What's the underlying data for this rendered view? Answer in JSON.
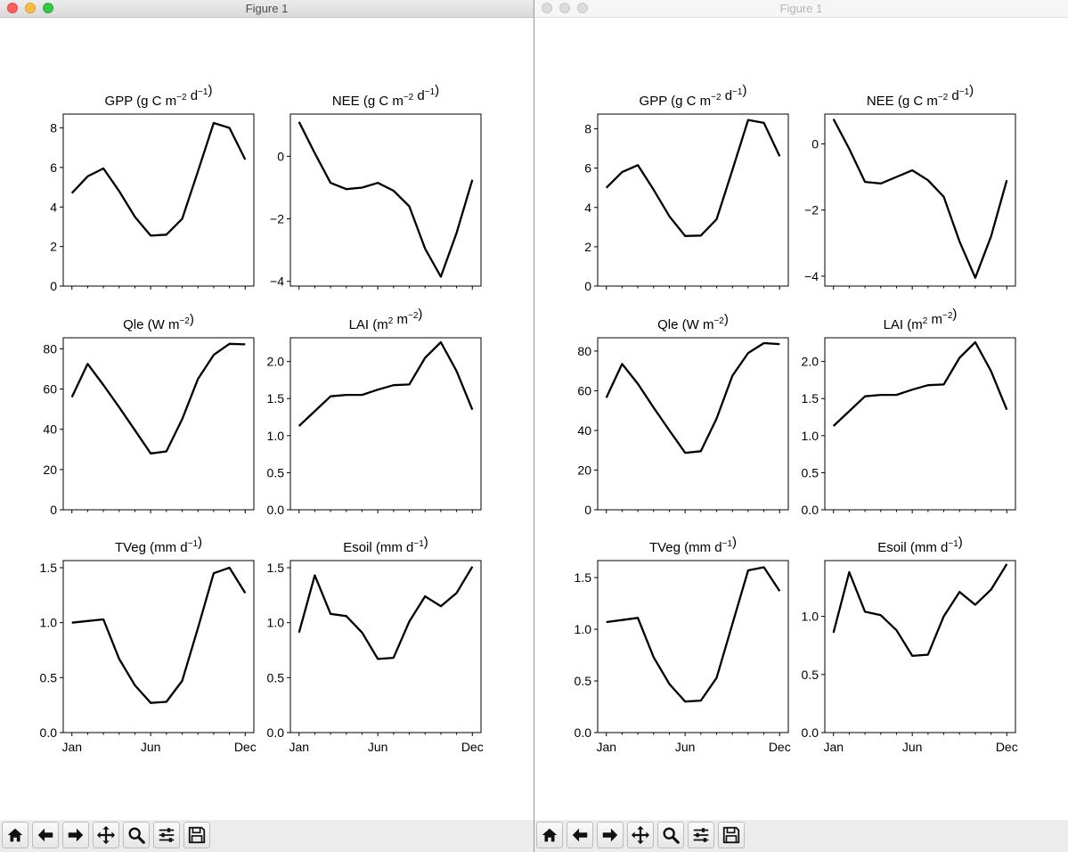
{
  "windows": [
    {
      "id": "win-left",
      "title": "Figure 1",
      "active": true
    },
    {
      "id": "win-right",
      "title": "Figure 1",
      "active": false
    }
  ],
  "toolbar": {
    "buttons": [
      {
        "name": "home-button",
        "icon": "home-icon"
      },
      {
        "name": "back-button",
        "icon": "arrow-left-icon"
      },
      {
        "name": "forward-button",
        "icon": "arrow-right-icon"
      },
      {
        "name": "pan-button",
        "icon": "move-icon"
      },
      {
        "name": "zoom-button",
        "icon": "zoom-icon"
      },
      {
        "name": "subplots-button",
        "icon": "sliders-icon"
      },
      {
        "name": "save-button",
        "icon": "save-icon"
      }
    ]
  },
  "colors": {
    "line": "#000000"
  },
  "chart_data": [
    {
      "figure": "left",
      "panels": [
        {
          "type": "line",
          "title": "GPP (g C m⁻² d⁻¹)",
          "ylim": [
            0,
            8.7
          ],
          "yticks": [
            0,
            2,
            4,
            6,
            8
          ],
          "yticklabels": [
            "0",
            "2",
            "4",
            "6",
            "8"
          ],
          "x": [
            1,
            2,
            3,
            4,
            5,
            6,
            7,
            8,
            9,
            10,
            11,
            12
          ],
          "values": [
            4.7,
            5.55,
            5.95,
            4.8,
            3.5,
            2.55,
            2.6,
            3.4,
            5.8,
            8.25,
            8.0,
            6.4
          ]
        },
        {
          "type": "line",
          "title": "NEE (g C m⁻² d⁻¹)",
          "ylim": [
            -4.15,
            1.35
          ],
          "yticks": [
            0,
            -2,
            -4
          ],
          "yticklabels": [
            "0",
            "−2",
            "−4"
          ],
          "x": [
            1,
            2,
            3,
            4,
            5,
            6,
            7,
            8,
            9,
            10,
            11,
            12
          ],
          "values": [
            1.1,
            0.1,
            -0.85,
            -1.05,
            -1.0,
            -0.85,
            -1.1,
            -1.6,
            -2.95,
            -3.85,
            -2.45,
            -0.75
          ]
        },
        {
          "type": "line",
          "title": "Qle (W m⁻²)",
          "ylim": [
            0,
            85.5
          ],
          "yticks": [
            0,
            20,
            40,
            60,
            80
          ],
          "yticklabels": [
            "0",
            "20",
            "40",
            "60",
            "80"
          ],
          "x": [
            1,
            2,
            3,
            4,
            5,
            6,
            7,
            8,
            9,
            10,
            11,
            12
          ],
          "values": [
            56,
            72.5,
            62,
            51,
            39.5,
            28,
            29,
            45,
            65,
            77,
            82.5,
            82.2
          ]
        },
        {
          "type": "line",
          "title": "LAI (m² m⁻²)",
          "ylim": [
            0,
            2.32
          ],
          "yticks": [
            0,
            0.5,
            1,
            1.5,
            2
          ],
          "yticklabels": [
            "0.0",
            "0.5",
            "1.0",
            "1.5",
            "2.0"
          ],
          "x": [
            1,
            2,
            3,
            4,
            5,
            6,
            7,
            8,
            9,
            10,
            11,
            12
          ],
          "values": [
            1.13,
            1.33,
            1.53,
            1.55,
            1.55,
            1.62,
            1.68,
            1.69,
            2.05,
            2.26,
            1.87,
            1.35
          ]
        },
        {
          "type": "line",
          "title": "TVeg (mm d⁻¹)",
          "ylim": [
            0,
            1.565
          ],
          "yticks": [
            0,
            0.5,
            1,
            1.5
          ],
          "yticklabels": [
            "0.0",
            "0.5",
            "1.0",
            "1.5"
          ],
          "x": [
            1,
            2,
            3,
            4,
            5,
            6,
            7,
            8,
            9,
            10,
            11,
            12
          ],
          "values": [
            1.0,
            1.015,
            1.03,
            0.67,
            0.43,
            0.27,
            0.28,
            0.47,
            0.95,
            1.45,
            1.5,
            1.27
          ],
          "xticks": [
            1,
            6,
            12
          ],
          "xticklabels": [
            "Jan",
            "Jun",
            "Dec"
          ]
        },
        {
          "type": "line",
          "title": "Esoil (mm d⁻¹)",
          "ylim": [
            0,
            1.565
          ],
          "yticks": [
            0,
            0.5,
            1,
            1.5
          ],
          "yticklabels": [
            "0.0",
            "0.5",
            "1.0",
            "1.5"
          ],
          "x": [
            1,
            2,
            3,
            4,
            5,
            6,
            7,
            8,
            9,
            10,
            11,
            12
          ],
          "values": [
            0.91,
            1.43,
            1.08,
            1.06,
            0.91,
            0.67,
            0.68,
            1.01,
            1.24,
            1.15,
            1.27,
            1.51
          ],
          "xticks": [
            1,
            6,
            12
          ],
          "xticklabels": [
            "Jan",
            "Jun",
            "Dec"
          ]
        }
      ]
    },
    {
      "figure": "right",
      "panels": [
        {
          "type": "line",
          "title": "GPP (g C m⁻² d⁻¹)",
          "ylim": [
            0,
            8.75
          ],
          "yticks": [
            0,
            2,
            4,
            6,
            8
          ],
          "yticklabels": [
            "0",
            "2",
            "4",
            "6",
            "8"
          ],
          "x": [
            1,
            2,
            3,
            4,
            5,
            6,
            7,
            8,
            9,
            10,
            11,
            12
          ],
          "values": [
            5.0,
            5.8,
            6.15,
            4.9,
            3.55,
            2.55,
            2.57,
            3.4,
            5.9,
            8.45,
            8.3,
            6.6
          ]
        },
        {
          "type": "line",
          "title": "NEE (g C m⁻² d⁻¹)",
          "ylim": [
            -4.3,
            0.9
          ],
          "yticks": [
            0,
            -2,
            -4
          ],
          "yticklabels": [
            "0",
            "−2",
            "−4"
          ],
          "x": [
            1,
            2,
            3,
            4,
            5,
            6,
            7,
            8,
            9,
            10,
            11,
            12
          ],
          "values": [
            0.75,
            -0.15,
            -1.15,
            -1.2,
            -1.0,
            -0.8,
            -1.1,
            -1.6,
            -2.95,
            -4.05,
            -2.8,
            -1.1
          ]
        },
        {
          "type": "line",
          "title": "Qle (W m⁻²)",
          "ylim": [
            0,
            86.7
          ],
          "yticks": [
            0,
            20,
            40,
            60,
            80
          ],
          "yticklabels": [
            "0",
            "20",
            "40",
            "60",
            "80"
          ],
          "x": [
            1,
            2,
            3,
            4,
            5,
            6,
            7,
            8,
            9,
            10,
            11,
            12
          ],
          "values": [
            56.5,
            73.5,
            63.5,
            51.5,
            40,
            28.7,
            29.5,
            46,
            67.5,
            79,
            84,
            83.5
          ]
        },
        {
          "type": "line",
          "title": "LAI (m² m⁻²)",
          "ylim": [
            0,
            2.32
          ],
          "yticks": [
            0,
            0.5,
            1,
            1.5,
            2
          ],
          "yticklabels": [
            "0.0",
            "0.5",
            "1.0",
            "1.5",
            "2.0"
          ],
          "x": [
            1,
            2,
            3,
            4,
            5,
            6,
            7,
            8,
            9,
            10,
            11,
            12
          ],
          "values": [
            1.13,
            1.33,
            1.53,
            1.55,
            1.55,
            1.62,
            1.68,
            1.69,
            2.05,
            2.26,
            1.87,
            1.35
          ]
        },
        {
          "type": "line",
          "title": "TVeg (mm d⁻¹)",
          "ylim": [
            0,
            1.665
          ],
          "yticks": [
            0,
            0.5,
            1,
            1.5
          ],
          "yticklabels": [
            "0.0",
            "0.5",
            "1.0",
            "1.5"
          ],
          "x": [
            1,
            2,
            3,
            4,
            5,
            6,
            7,
            8,
            9,
            10,
            11,
            12
          ],
          "values": [
            1.07,
            1.09,
            1.11,
            0.73,
            0.47,
            0.3,
            0.31,
            0.53,
            1.05,
            1.57,
            1.6,
            1.37
          ],
          "xticks": [
            1,
            6,
            12
          ],
          "xticklabels": [
            "Jan",
            "Jun",
            "Dec"
          ]
        },
        {
          "type": "line",
          "title": "Esoil (mm d⁻¹)",
          "ylim": [
            0,
            1.48
          ],
          "yticks": [
            0,
            0.5,
            1
          ],
          "yticklabels": [
            "0.0",
            "0.5",
            "1.0"
          ],
          "x": [
            1,
            2,
            3,
            4,
            5,
            6,
            7,
            8,
            9,
            10,
            11,
            12
          ],
          "values": [
            0.86,
            1.38,
            1.04,
            1.01,
            0.88,
            0.66,
            0.67,
            1.0,
            1.21,
            1.1,
            1.23,
            1.45
          ],
          "xticks": [
            1,
            6,
            12
          ],
          "xticklabels": [
            "Jan",
            "Jun",
            "Dec"
          ]
        }
      ]
    }
  ]
}
